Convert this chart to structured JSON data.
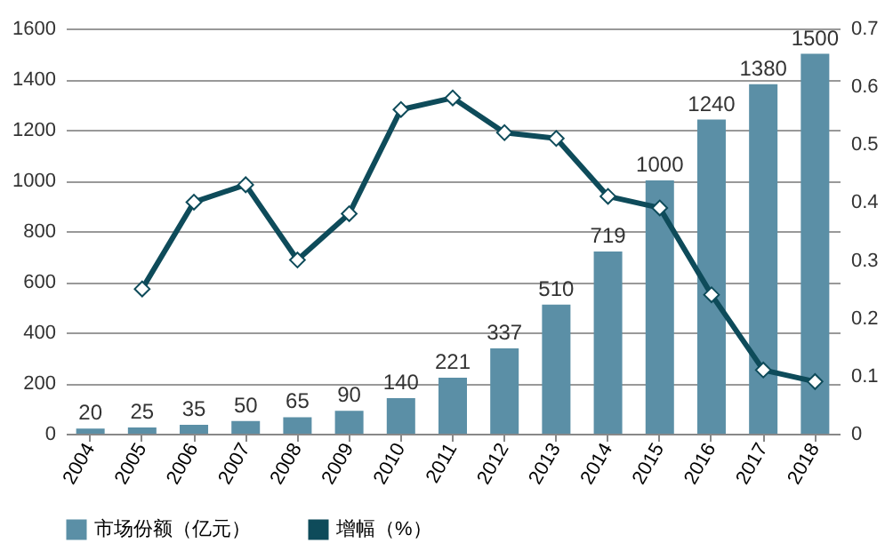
{
  "chart_data": {
    "type": "bar",
    "categories": [
      "2004",
      "2005",
      "2006",
      "2007",
      "2008",
      "2009",
      "2010",
      "2011",
      "2012",
      "2013",
      "2014",
      "2015",
      "2016",
      "2017",
      "2018"
    ],
    "series": [
      {
        "name": "市场份额（亿元）",
        "color": "#5b8fa6",
        "data_labels": true,
        "values": [
          20,
          25,
          35,
          50,
          65,
          90,
          140,
          221,
          337,
          510,
          719,
          1000,
          1240,
          1380,
          1500
        ]
      },
      {
        "name": "增幅（%）",
        "type": "line",
        "axis": "y2",
        "color": "#0e4b5a",
        "marker": "diamond",
        "values": [
          null,
          0.25,
          0.4,
          0.43,
          0.3,
          0.38,
          0.56,
          0.58,
          0.52,
          0.51,
          0.41,
          0.39,
          0.24,
          0.11,
          0.09
        ]
      }
    ],
    "ylim": [
      0,
      1600
    ],
    "yticks": [
      0,
      200,
      400,
      600,
      800,
      1000,
      1200,
      1400,
      1600
    ],
    "y2lim": [
      0,
      0.7
    ],
    "y2ticks": [
      0,
      0.1,
      0.2,
      0.3,
      0.4,
      0.5,
      0.6,
      0.7
    ],
    "grid": "y",
    "legend": "bottom"
  }
}
